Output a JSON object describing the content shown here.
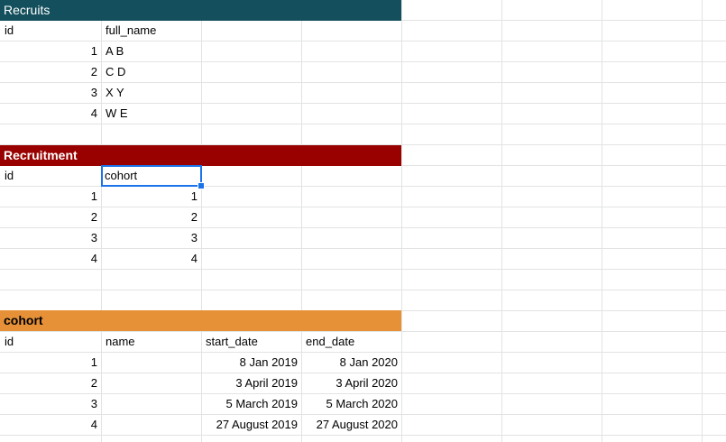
{
  "sheets": {
    "recruits": {
      "title": "Recruits",
      "header": [
        "id",
        "full_name"
      ],
      "rows": [
        {
          "id": "1",
          "full_name": "A B"
        },
        {
          "id": "2",
          "full_name": "C D"
        },
        {
          "id": "3",
          "full_name": "X Y"
        },
        {
          "id": "4",
          "full_name": "W E"
        }
      ]
    },
    "recruitment": {
      "title": "Recruitment",
      "header": [
        "id",
        "cohort"
      ],
      "rows": [
        {
          "id": "1",
          "cohort": "1"
        },
        {
          "id": "2",
          "cohort": "2"
        },
        {
          "id": "3",
          "cohort": "3"
        },
        {
          "id": "4",
          "cohort": "4"
        }
      ]
    },
    "cohort": {
      "title": "cohort",
      "header": [
        "id",
        "name",
        "start_date",
        "end_date"
      ],
      "rows": [
        {
          "id": "1",
          "name": "",
          "start_date": "8 Jan 2019",
          "end_date": "8 Jan 2020"
        },
        {
          "id": "2",
          "name": "",
          "start_date": "3 April 2019",
          "end_date": "3 April 2020"
        },
        {
          "id": "3",
          "name": "",
          "start_date": "5 March 2019",
          "end_date": "5 March 2020"
        },
        {
          "id": "4",
          "name": "",
          "start_date": "27 August 2019",
          "end_date": "27 August 2020"
        }
      ]
    }
  },
  "colors": {
    "recruits_header": "#134f5c",
    "recruitment_header": "#990000",
    "cohort_header": "#e69138",
    "selection": "#1a73e8",
    "gridline": "#e2e3e3"
  }
}
